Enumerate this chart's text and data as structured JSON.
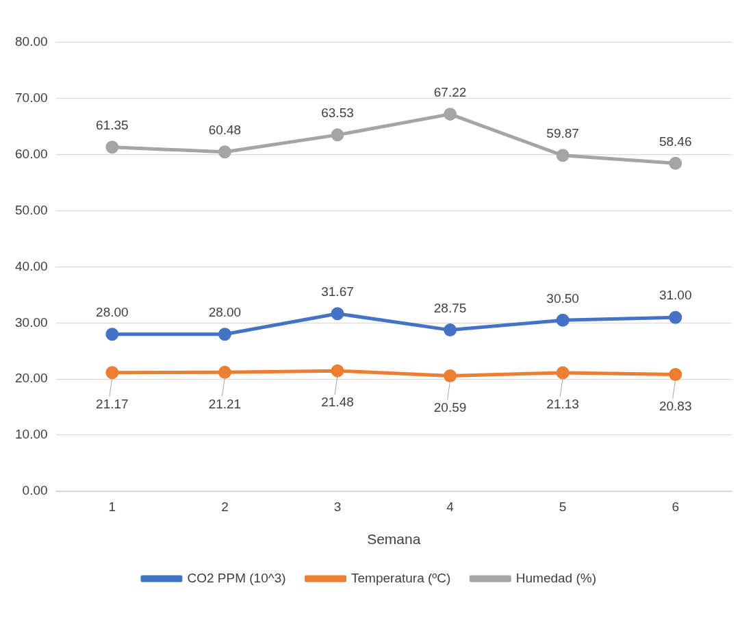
{
  "chart_data": {
    "type": "line",
    "xlabel": "Semana",
    "categories": [
      "1",
      "2",
      "3",
      "4",
      "5",
      "6"
    ],
    "series": [
      {
        "name": "CO2 PPM (10^3)",
        "color": "#4472c4",
        "values": [
          28.0,
          28.0,
          31.67,
          28.75,
          30.5,
          31.0
        ],
        "value_labels": [
          "28.00",
          "28.00",
          "31.67",
          "28.75",
          "30.50",
          "31.00"
        ]
      },
      {
        "name": "Temperatura (ºC)",
        "color": "#ed7d31",
        "values": [
          21.17,
          21.21,
          21.48,
          20.59,
          21.13,
          20.83
        ],
        "value_labels": [
          "21.17",
          "21.21",
          "21.48",
          "20.59",
          "21.13",
          "20.83"
        ]
      },
      {
        "name": "Humedad (%)",
        "color": "#a5a5a5",
        "values": [
          61.35,
          60.48,
          63.53,
          67.22,
          59.87,
          58.46
        ],
        "value_labels": [
          "61.35",
          "60.48",
          "63.53",
          "67.22",
          "59.87",
          "58.46"
        ]
      }
    ],
    "ylim": [
      0,
      80
    ],
    "yticks": [
      {
        "value": 0,
        "label": "0.00"
      },
      {
        "value": 10,
        "label": "10.00"
      },
      {
        "value": 20,
        "label": "20.00"
      },
      {
        "value": 30,
        "label": "30.00"
      },
      {
        "value": 40,
        "label": "40.00"
      },
      {
        "value": 50,
        "label": "50.00"
      },
      {
        "value": 60,
        "label": "60.00"
      },
      {
        "value": 70,
        "label": "70.00"
      },
      {
        "value": 80,
        "label": "80.00"
      }
    ],
    "grid": "y",
    "legend": "bottom",
    "marker": "circle",
    "line_style": "solid"
  }
}
